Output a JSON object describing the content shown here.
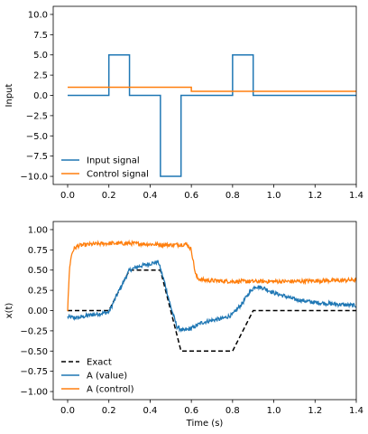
{
  "colors": {
    "blue": "#1f77b4",
    "orange": "#ff7f0e",
    "black": "#000000",
    "frame": "#000000",
    "background": "#ffffff"
  },
  "chart_data": [
    {
      "type": "line",
      "title": "",
      "xlabel": "",
      "ylabel": "Input",
      "xlim": [
        -0.07,
        1.4
      ],
      "ylim": [
        -11,
        11
      ],
      "xticks": [
        "0.0",
        "0.2",
        "0.4",
        "0.6",
        "0.8",
        "1.0",
        "1.2",
        "1.4"
      ],
      "yticks": [
        "10.0",
        "7.5",
        "5.0",
        "2.5",
        "0.0",
        "−2.5",
        "−5.0",
        "−7.5",
        "−10.0"
      ],
      "grid": false,
      "legend": "lower-left",
      "series": [
        {
          "name": "Input signal",
          "color": "#1f77b4",
          "style": "solid",
          "x": [
            0.0,
            0.2,
            0.2,
            0.3,
            0.3,
            0.45,
            0.45,
            0.55,
            0.55,
            0.8,
            0.8,
            0.9,
            0.9,
            1.4
          ],
          "y": [
            0,
            0,
            5,
            5,
            0,
            0,
            -10,
            -10,
            0,
            0,
            5,
            5,
            0,
            0
          ]
        },
        {
          "name": "Control signal",
          "color": "#ff7f0e",
          "style": "solid",
          "x": [
            0.0,
            0.6,
            0.6,
            1.4
          ],
          "y": [
            1.0,
            1.0,
            0.5,
            0.5
          ]
        }
      ]
    },
    {
      "type": "line",
      "title": "",
      "xlabel": "Time (s)",
      "ylabel": "x(t)",
      "xlim": [
        -0.07,
        1.4
      ],
      "ylim": [
        -1.1,
        1.1
      ],
      "xticks": [
        "0.0",
        "0.2",
        "0.4",
        "0.6",
        "0.8",
        "1.0",
        "1.2",
        "1.4"
      ],
      "yticks": [
        "1.00",
        "0.75",
        "0.50",
        "0.25",
        "0.00",
        "−0.25",
        "−0.50",
        "−0.75",
        "−1.00"
      ],
      "grid": false,
      "legend": "lower-left",
      "series": [
        {
          "name": "Exact",
          "color": "#000000",
          "style": "dashed",
          "x": [
            0.0,
            0.2,
            0.3,
            0.45,
            0.55,
            0.8,
            0.9,
            1.4
          ],
          "y": [
            0.0,
            0.0,
            0.5,
            0.5,
            -0.5,
            -0.5,
            0.0,
            0.0
          ]
        },
        {
          "name": "A (value)",
          "color": "#1f77b4",
          "style": "solid",
          "noisy": true,
          "x": [
            0.0,
            0.05,
            0.1,
            0.15,
            0.2,
            0.25,
            0.3,
            0.35,
            0.4,
            0.44,
            0.47,
            0.5,
            0.53,
            0.56,
            0.6,
            0.65,
            0.7,
            0.75,
            0.8,
            0.85,
            0.88,
            0.91,
            0.95,
            1.0,
            1.05,
            1.1,
            1.15,
            1.2,
            1.25,
            1.3,
            1.35,
            1.4
          ],
          "y": [
            -0.08,
            -0.09,
            -0.06,
            -0.04,
            -0.02,
            0.25,
            0.5,
            0.55,
            0.58,
            0.6,
            0.35,
            0.05,
            -0.2,
            -0.25,
            -0.22,
            -0.15,
            -0.12,
            -0.1,
            -0.05,
            0.1,
            0.22,
            0.3,
            0.28,
            0.22,
            0.18,
            0.14,
            0.12,
            0.1,
            0.09,
            0.08,
            0.07,
            0.06
          ]
        },
        {
          "name": "A (control)",
          "color": "#ff7f0e",
          "style": "solid",
          "noisy": true,
          "x": [
            0.0,
            0.005,
            0.01,
            0.02,
            0.03,
            0.05,
            0.08,
            0.12,
            0.2,
            0.3,
            0.4,
            0.5,
            0.58,
            0.6,
            0.61,
            0.62,
            0.63,
            0.65,
            0.7,
            0.8,
            0.9,
            1.0,
            1.1,
            1.2,
            1.3,
            1.4
          ],
          "y": [
            0.0,
            0.3,
            0.55,
            0.7,
            0.76,
            0.8,
            0.81,
            0.82,
            0.83,
            0.83,
            0.82,
            0.81,
            0.82,
            0.75,
            0.6,
            0.45,
            0.4,
            0.38,
            0.37,
            0.36,
            0.36,
            0.36,
            0.36,
            0.37,
            0.37,
            0.38
          ]
        }
      ]
    }
  ]
}
